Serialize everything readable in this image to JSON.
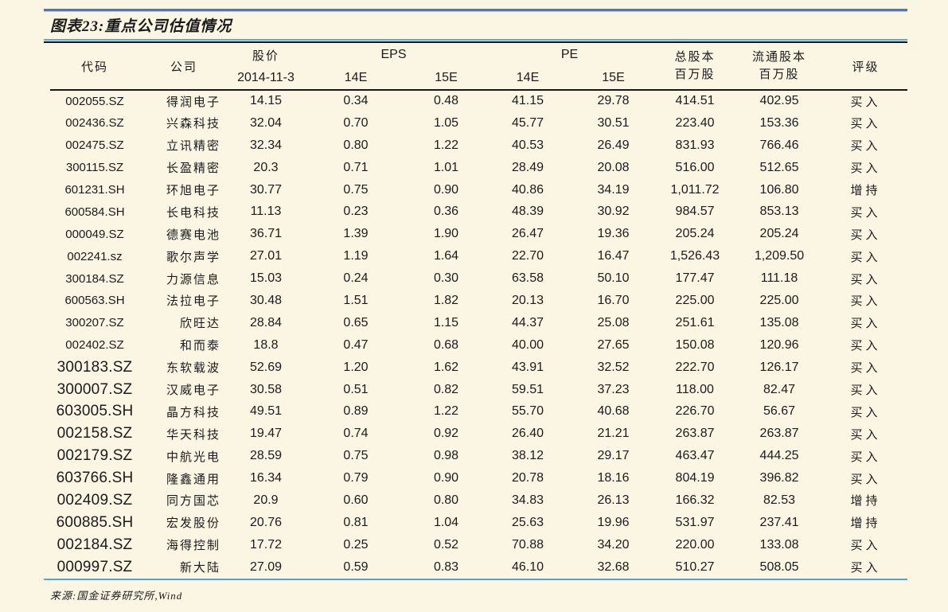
{
  "title": "图表23:重点公司估值情况",
  "table": {
    "headers": {
      "code": "代码",
      "company": "公司",
      "price_line1": "股价",
      "price_line2": "2014-11-3",
      "eps_group": "EPS",
      "pe_group": "PE",
      "eps_14e": "14E",
      "eps_15e": "15E",
      "pe_14e": "14E",
      "pe_15e": "15E",
      "total_shares_line1": "总股本",
      "total_shares_line2": "百万股",
      "float_shares_line1": "流通股本",
      "float_shares_line2": "百万股",
      "rating": "评级"
    },
    "rows": [
      {
        "code": "002055.SZ",
        "company": "得润电子",
        "price": "14.15",
        "eps14": "0.34",
        "eps15": "0.48",
        "pe14": "41.15",
        "pe15": "29.78",
        "total": "414.51",
        "float": "402.95",
        "rating": "买入"
      },
      {
        "code": "002436.SZ",
        "company": "兴森科技",
        "price": "32.04",
        "eps14": "0.70",
        "eps15": "1.05",
        "pe14": "45.77",
        "pe15": "30.51",
        "total": "223.40",
        "float": "153.36",
        "rating": "买入"
      },
      {
        "code": "002475.SZ",
        "company": "立讯精密",
        "price": "32.34",
        "eps14": "0.80",
        "eps15": "1.22",
        "pe14": "40.53",
        "pe15": "26.49",
        "total": "831.93",
        "float": "766.46",
        "rating": "买入"
      },
      {
        "code": "300115.SZ",
        "company": "长盈精密",
        "price": "20.3",
        "eps14": "0.71",
        "eps15": "1.01",
        "pe14": "28.49",
        "pe15": "20.08",
        "total": "516.00",
        "float": "512.65",
        "rating": "买入"
      },
      {
        "code": "601231.SH",
        "company": "环旭电子",
        "price": "30.77",
        "eps14": "0.75",
        "eps15": "0.90",
        "pe14": "40.86",
        "pe15": "34.19",
        "total": "1,011.72",
        "float": "106.80",
        "rating": "增持"
      },
      {
        "code": "600584.SH",
        "company": "长电科技",
        "price": "11.13",
        "eps14": "0.23",
        "eps15": "0.36",
        "pe14": "48.39",
        "pe15": "30.92",
        "total": "984.57",
        "float": "853.13",
        "rating": "买入"
      },
      {
        "code": "000049.SZ",
        "company": "德赛电池",
        "price": "36.71",
        "eps14": "1.39",
        "eps15": "1.90",
        "pe14": "26.47",
        "pe15": "19.36",
        "total": "205.24",
        "float": "205.24",
        "rating": "买入"
      },
      {
        "code": "002241.sz",
        "company": "歌尔声学",
        "price": "27.01",
        "eps14": "1.19",
        "eps15": "1.64",
        "pe14": "22.70",
        "pe15": "16.47",
        "total": "1,526.43",
        "float": "1,209.50",
        "rating": "买入"
      },
      {
        "code": "300184.SZ",
        "company": "力源信息",
        "price": "15.03",
        "eps14": "0.24",
        "eps15": "0.30",
        "pe14": "63.58",
        "pe15": "50.10",
        "total": "177.47",
        "float": "111.18",
        "rating": "买入"
      },
      {
        "code": "600563.SH",
        "company": "法拉电子",
        "price": "30.48",
        "eps14": "1.51",
        "eps15": "1.82",
        "pe14": "20.13",
        "pe15": "16.70",
        "total": "225.00",
        "float": "225.00",
        "rating": "买入"
      },
      {
        "code": "300207.SZ",
        "company": "欣旺达",
        "price": "28.84",
        "eps14": "0.65",
        "eps15": "1.15",
        "pe14": "44.37",
        "pe15": "25.08",
        "total": "251.61",
        "float": "135.08",
        "rating": "买入"
      },
      {
        "code": "002402.SZ",
        "company": "和而泰",
        "price": "18.8",
        "eps14": "0.47",
        "eps15": "0.68",
        "pe14": "40.00",
        "pe15": "27.65",
        "total": "150.08",
        "float": "120.96",
        "rating": "买入"
      },
      {
        "code": "300183.SZ",
        "company": "东软载波",
        "price": "52.69",
        "eps14": "1.20",
        "eps15": "1.62",
        "pe14": "43.91",
        "pe15": "32.52",
        "total": "222.70",
        "float": "126.17",
        "rating": "买入"
      },
      {
        "code": "300007.SZ",
        "company": "汉威电子",
        "price": "30.58",
        "eps14": "0.51",
        "eps15": "0.82",
        "pe14": "59.51",
        "pe15": "37.23",
        "total": "118.00",
        "float": "82.47",
        "rating": "买入"
      },
      {
        "code": "603005.SH",
        "company": "晶方科技",
        "price": "49.51",
        "eps14": "0.89",
        "eps15": "1.22",
        "pe14": "55.70",
        "pe15": "40.68",
        "total": "226.70",
        "float": "56.67",
        "rating": "买入"
      },
      {
        "code": "002158.SZ",
        "company": "华天科技",
        "price": "19.47",
        "eps14": "0.74",
        "eps15": "0.92",
        "pe14": "26.40",
        "pe15": "21.21",
        "total": "263.87",
        "float": "263.87",
        "rating": "买入"
      },
      {
        "code": "002179.SZ",
        "company": "中航光电",
        "price": "28.59",
        "eps14": "0.75",
        "eps15": "0.98",
        "pe14": "38.12",
        "pe15": "29.17",
        "total": "463.47",
        "float": "444.25",
        "rating": "买入"
      },
      {
        "code": "603766.SH",
        "company": "隆鑫通用",
        "price": "16.34",
        "eps14": "0.79",
        "eps15": "0.90",
        "pe14": "20.78",
        "pe15": "18.16",
        "total": "804.19",
        "float": "396.82",
        "rating": "买入"
      },
      {
        "code": "002409.SZ",
        "company": "同方国芯",
        "price": "20.9",
        "eps14": "0.60",
        "eps15": "0.80",
        "pe14": "34.83",
        "pe15": "26.13",
        "total": "166.32",
        "float": "82.53",
        "rating": "增持"
      },
      {
        "code": "600885.SH",
        "company": "宏发股份",
        "price": "20.76",
        "eps14": "0.81",
        "eps15": "1.04",
        "pe14": "25.63",
        "pe15": "19.96",
        "total": "531.97",
        "float": "237.41",
        "rating": "增持"
      },
      {
        "code": "002184.SZ",
        "company": "海得控制",
        "price": "17.72",
        "eps14": "0.25",
        "eps15": "0.52",
        "pe14": "70.88",
        "pe15": "34.20",
        "total": "220.00",
        "float": "133.08",
        "rating": "买入"
      },
      {
        "code": "000997.SZ",
        "company": "新大陆",
        "price": "27.09",
        "eps14": "0.59",
        "eps15": "0.83",
        "pe14": "46.10",
        "pe15": "32.68",
        "total": "510.27",
        "float": "508.05",
        "rating": "买入"
      }
    ]
  },
  "source": "来源:国金证券研究所,Wind",
  "colors": {
    "background": "#FBF5E4",
    "text": "#1B1B1B",
    "top_rule_blue": "#3D7EC0",
    "top_rule_lavender": "#C9C4E2",
    "divider_blue": "#56A9DE",
    "divider_black": "#161616",
    "bottom_rule_blue": "#4FA6DC"
  }
}
